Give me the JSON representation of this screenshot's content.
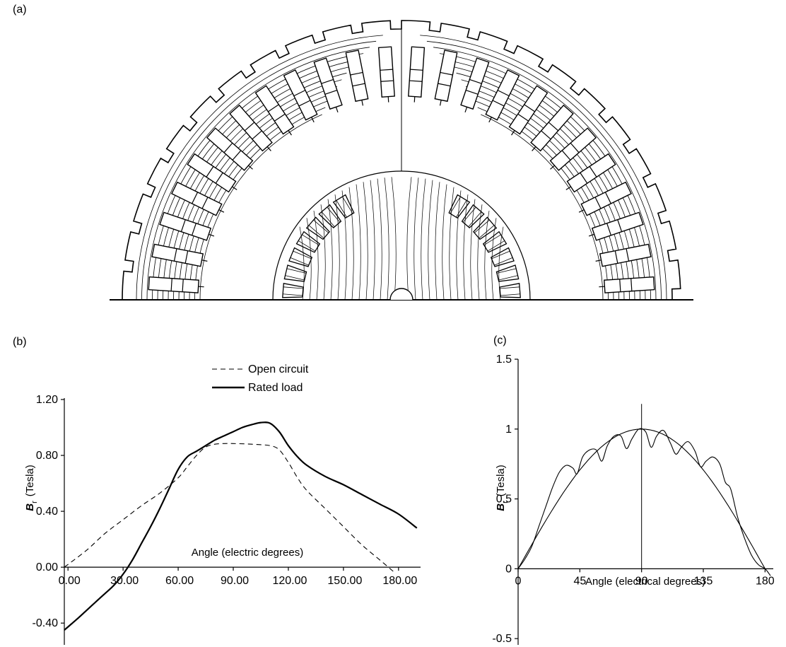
{
  "panels": {
    "a": "(a)",
    "b": "(b)",
    "c": "(c)"
  },
  "chart_data": [
    {
      "panel": "(b)",
      "type": "line",
      "ylabel": "B r (Tesla)",
      "ylabel_main": "B",
      "ylabel_sub": "r",
      "ylabel_unit": "(Tesla)",
      "xlabel": "Angle (electric degrees)",
      "xlim": [
        -2,
        192
      ],
      "ylim": [
        -0.48,
        1.2
      ],
      "x_ticks": [
        "0.00",
        "30.00",
        "60.00",
        "90.00",
        "120.00",
        "150.00",
        "180.00"
      ],
      "x_tick_values": [
        0,
        30,
        60,
        90,
        120,
        150,
        180
      ],
      "y_ticks": [
        "1.20",
        "0.80",
        "0.40",
        "0.00",
        "-0.40"
      ],
      "y_tick_values": [
        1.2,
        0.8,
        0.4,
        0.0,
        -0.4
      ],
      "legend_position": "top-center",
      "series": [
        {
          "name": "Open circuit",
          "style": "dashed",
          "x": [
            -2,
            10,
            20,
            30,
            40,
            50,
            60,
            65,
            70,
            75,
            80,
            85,
            90,
            100,
            110,
            115,
            120,
            125,
            130,
            140,
            150,
            160,
            170,
            178
          ],
          "y": [
            0.0,
            0.12,
            0.24,
            0.34,
            0.44,
            0.53,
            0.64,
            0.72,
            0.8,
            0.86,
            0.88,
            0.885,
            0.885,
            0.88,
            0.87,
            0.84,
            0.75,
            0.64,
            0.55,
            0.42,
            0.29,
            0.16,
            0.05,
            -0.04
          ]
        },
        {
          "name": "Rated load",
          "style": "solid",
          "x": [
            -2,
            5,
            10,
            15,
            20,
            25,
            30,
            35,
            40,
            45,
            50,
            55,
            60,
            65,
            70,
            75,
            80,
            85,
            90,
            95,
            100,
            105,
            110,
            115,
            120,
            125,
            130,
            140,
            150,
            160,
            170,
            180,
            190
          ],
          "y": [
            -0.45,
            -0.37,
            -0.31,
            -0.25,
            -0.19,
            -0.13,
            -0.05,
            0.05,
            0.17,
            0.29,
            0.42,
            0.56,
            0.7,
            0.79,
            0.83,
            0.87,
            0.91,
            0.94,
            0.97,
            1.0,
            1.02,
            1.035,
            1.03,
            0.97,
            0.87,
            0.79,
            0.73,
            0.65,
            0.59,
            0.52,
            0.45,
            0.38,
            0.28
          ]
        }
      ]
    },
    {
      "panel": "(c)",
      "type": "line",
      "ylabel": "B r (Tesla)",
      "ylabel_main": "B",
      "ylabel_sub": "r",
      "ylabel_unit": "(Tesla)",
      "xlabel": "Angle (electrical degrees)",
      "xlim": [
        0,
        186
      ],
      "ylim": [
        -0.55,
        1.5
      ],
      "x_ticks": [
        "0",
        "45",
        "90",
        "135",
        "180"
      ],
      "x_tick_values": [
        0,
        45,
        90,
        135,
        180
      ],
      "y_ticks": [
        "1.5",
        "1",
        "0.5",
        "0",
        "-0.5"
      ],
      "y_tick_values": [
        1.5,
        1,
        0.5,
        0,
        -0.5
      ],
      "vertical_line_x": 90,
      "series": [
        {
          "style": "solid-smooth",
          "function": "sin",
          "x_range": [
            0,
            180
          ],
          "amplitude": 1.0
        },
        {
          "style": "solid-ripple",
          "x": [
            0,
            5,
            10,
            15,
            20,
            25,
            30,
            35,
            40,
            43,
            47,
            52,
            57,
            61,
            65,
            70,
            75,
            79,
            83,
            88,
            93,
            97,
            101,
            106,
            111,
            115,
            119,
            124,
            129,
            133,
            137,
            142,
            147,
            151,
            155,
            160,
            165,
            170,
            175,
            180,
            184
          ],
          "y": [
            0.0,
            0.07,
            0.16,
            0.3,
            0.44,
            0.58,
            0.69,
            0.74,
            0.72,
            0.68,
            0.8,
            0.85,
            0.85,
            0.77,
            0.88,
            0.95,
            0.95,
            0.86,
            0.93,
            1.0,
            0.98,
            0.87,
            0.95,
            0.99,
            0.9,
            0.82,
            0.87,
            0.91,
            0.84,
            0.73,
            0.77,
            0.8,
            0.75,
            0.62,
            0.57,
            0.37,
            0.22,
            0.1,
            0.03,
            0.0,
            -0.05
          ]
        }
      ]
    }
  ]
}
